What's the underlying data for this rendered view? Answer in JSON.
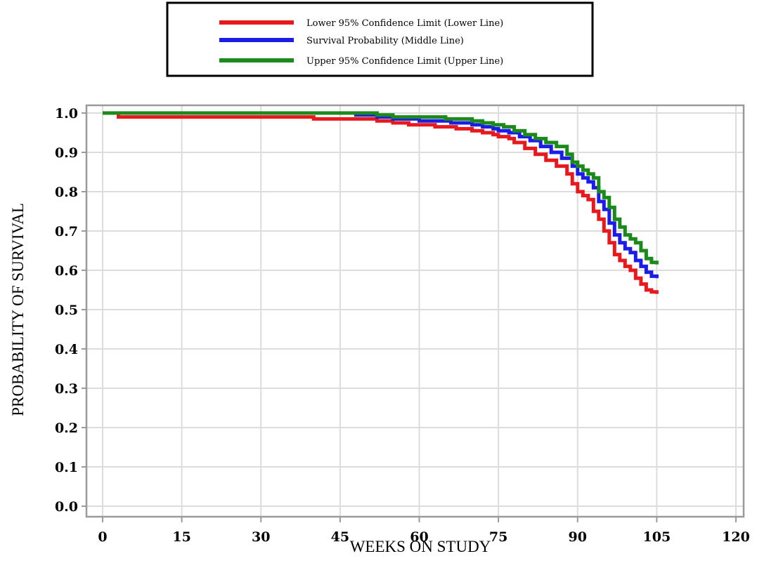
{
  "chart_data": {
    "type": "line",
    "title": "",
    "xlabel": "WEEKS ON STUDY",
    "ylabel": "PROBABILITY OF SURVIVAL",
    "xlim": [
      0,
      120
    ],
    "ylim": [
      0,
      1.0
    ],
    "x_ticks": [
      0,
      15,
      30,
      45,
      60,
      75,
      90,
      105,
      120
    ],
    "x_tick_labels": [
      "0",
      "15",
      "30",
      "45",
      "60",
      "75",
      "90",
      "105",
      "120"
    ],
    "y_ticks": [
      0,
      0.1,
      0.2,
      0.3,
      0.4,
      0.5,
      0.6,
      0.7,
      0.8,
      0.9,
      1.0
    ],
    "y_tick_labels": [
      "0.0",
      "0.1",
      "0.2",
      "0.3",
      "0.4",
      "0.5",
      "0.6",
      "0.7",
      "0.8",
      "0.9",
      "1.0"
    ],
    "grid": true,
    "legend_position": "top-center",
    "series": [
      {
        "name": "Lower 95% Confidence Limit (Lower Line)",
        "color": "#e8191c",
        "points": [
          [
            0,
            1.0
          ],
          [
            3,
            1.0
          ],
          [
            3,
            0.99
          ],
          [
            40,
            0.99
          ],
          [
            40,
            0.985
          ],
          [
            48,
            0.985
          ],
          [
            52,
            0.98
          ],
          [
            55,
            0.975
          ],
          [
            58,
            0.97
          ],
          [
            63,
            0.965
          ],
          [
            67,
            0.96
          ],
          [
            70,
            0.955
          ],
          [
            72,
            0.95
          ],
          [
            74,
            0.945
          ],
          [
            75,
            0.94
          ],
          [
            77,
            0.935
          ],
          [
            78,
            0.925
          ],
          [
            80,
            0.91
          ],
          [
            82,
            0.895
          ],
          [
            84,
            0.88
          ],
          [
            86,
            0.865
          ],
          [
            88,
            0.845
          ],
          [
            89,
            0.82
          ],
          [
            90,
            0.8
          ],
          [
            91,
            0.79
          ],
          [
            92,
            0.78
          ],
          [
            93,
            0.75
          ],
          [
            94,
            0.73
          ],
          [
            95,
            0.7
          ],
          [
            96,
            0.67
          ],
          [
            97,
            0.64
          ],
          [
            98,
            0.625
          ],
          [
            99,
            0.61
          ],
          [
            100,
            0.6
          ],
          [
            101,
            0.58
          ],
          [
            102,
            0.565
          ],
          [
            103,
            0.55
          ],
          [
            104,
            0.545
          ],
          [
            105,
            0.54
          ]
        ]
      },
      {
        "name": "Survival Probability (Middle Line)",
        "color": "#1c1ce8",
        "points": [
          [
            0,
            1.0
          ],
          [
            48,
            1.0
          ],
          [
            48,
            0.995
          ],
          [
            52,
            0.99
          ],
          [
            55,
            0.985
          ],
          [
            60,
            0.98
          ],
          [
            66,
            0.975
          ],
          [
            70,
            0.97
          ],
          [
            72,
            0.965
          ],
          [
            74,
            0.96
          ],
          [
            75,
            0.955
          ],
          [
            77,
            0.95
          ],
          [
            79,
            0.94
          ],
          [
            81,
            0.93
          ],
          [
            83,
            0.915
          ],
          [
            85,
            0.9
          ],
          [
            87,
            0.885
          ],
          [
            89,
            0.865
          ],
          [
            90,
            0.845
          ],
          [
            91,
            0.835
          ],
          [
            92,
            0.825
          ],
          [
            93,
            0.81
          ],
          [
            94,
            0.775
          ],
          [
            95,
            0.755
          ],
          [
            96,
            0.72
          ],
          [
            97,
            0.69
          ],
          [
            98,
            0.67
          ],
          [
            99,
            0.655
          ],
          [
            100,
            0.645
          ],
          [
            101,
            0.625
          ],
          [
            102,
            0.61
          ],
          [
            103,
            0.595
          ],
          [
            104,
            0.585
          ],
          [
            105,
            0.58
          ]
        ]
      },
      {
        "name": "Upper 95% Confidence Limit (Upper Line)",
        "color": "#1a8a1a",
        "points": [
          [
            0,
            1.0
          ],
          [
            50,
            1.0
          ],
          [
            52,
            0.995
          ],
          [
            55,
            0.99
          ],
          [
            62,
            0.99
          ],
          [
            65,
            0.985
          ],
          [
            70,
            0.98
          ],
          [
            72,
            0.975
          ],
          [
            74,
            0.97
          ],
          [
            76,
            0.965
          ],
          [
            78,
            0.955
          ],
          [
            80,
            0.945
          ],
          [
            82,
            0.935
          ],
          [
            84,
            0.925
          ],
          [
            86,
            0.915
          ],
          [
            88,
            0.895
          ],
          [
            89,
            0.875
          ],
          [
            90,
            0.865
          ],
          [
            91,
            0.855
          ],
          [
            92,
            0.845
          ],
          [
            93,
            0.835
          ],
          [
            94,
            0.8
          ],
          [
            95,
            0.785
          ],
          [
            96,
            0.76
          ],
          [
            97,
            0.73
          ],
          [
            98,
            0.71
          ],
          [
            99,
            0.69
          ],
          [
            100,
            0.68
          ],
          [
            101,
            0.67
          ],
          [
            102,
            0.65
          ],
          [
            103,
            0.63
          ],
          [
            104,
            0.62
          ],
          [
            105,
            0.615
          ]
        ]
      }
    ]
  }
}
